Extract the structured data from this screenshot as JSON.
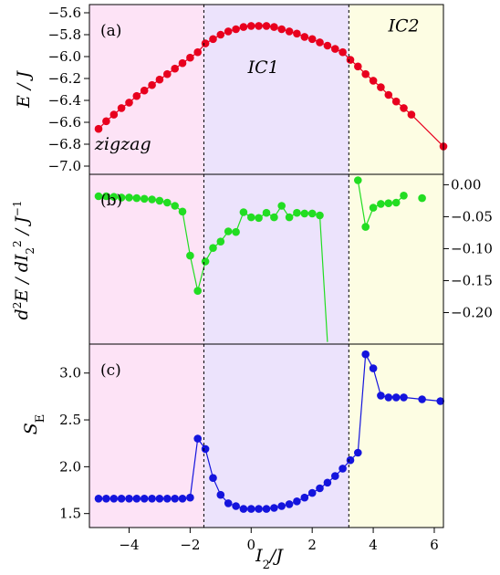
{
  "chart_data": [
    {
      "type": "line",
      "panel_label": "(a)",
      "ylabel": "E / J",
      "xlim": [
        -5.3,
        6.3
      ],
      "ylim": [
        -7.05,
        -5.55
      ],
      "yticks": [
        "−5.6",
        "−5.8",
        "−6.0",
        "−6.2",
        "−6.4",
        "−6.6",
        "−6.8",
        "−7.0"
      ],
      "ytick_values": [
        -5.6,
        -5.8,
        -6.0,
        -6.2,
        -6.4,
        -6.6,
        -6.8,
        -7.0
      ],
      "axis_side": "left",
      "marker_color": "#e8001e",
      "line_color": "#e8001e",
      "region_labels": [
        {
          "text": "zigzag",
          "x": -4.2,
          "y": -6.85
        },
        {
          "text": "IC1",
          "x": 0.4,
          "y": -6.15
        },
        {
          "text": "IC2",
          "x": 5.0,
          "y": -5.77
        }
      ],
      "x": [
        -5.0,
        -4.75,
        -4.5,
        -4.25,
        -4.0,
        -3.75,
        -3.5,
        -3.25,
        -3.0,
        -2.75,
        -2.5,
        -2.25,
        -2.0,
        -1.75,
        -1.5,
        -1.25,
        -1.0,
        -0.75,
        -0.5,
        -0.25,
        0.0,
        0.25,
        0.5,
        0.75,
        1.0,
        1.25,
        1.5,
        1.75,
        2.0,
        2.25,
        2.5,
        2.75,
        3.0,
        3.25,
        3.5,
        3.75,
        4.0,
        4.25,
        4.5,
        4.75,
        5.0,
        5.25,
        6.3
      ],
      "y": [
        -6.66,
        -6.59,
        -6.53,
        -6.47,
        -6.42,
        -6.36,
        -6.31,
        -6.26,
        -6.21,
        -6.16,
        -6.11,
        -6.06,
        -6.01,
        -5.96,
        -5.88,
        -5.84,
        -5.8,
        -5.77,
        -5.75,
        -5.73,
        -5.72,
        -5.72,
        -5.72,
        -5.73,
        -5.75,
        -5.77,
        -5.79,
        -5.82,
        -5.84,
        -5.87,
        -5.9,
        -5.93,
        -5.96,
        -6.03,
        -6.09,
        -6.16,
        -6.22,
        -6.28,
        -6.35,
        -6.41,
        -6.47,
        -6.53,
        -6.82
      ]
    },
    {
      "type": "line",
      "panel_label": "(b)",
      "ylabel": "d²E / dI₂² / J⁻¹",
      "xlim": [
        -5.3,
        6.3
      ],
      "ylim": [
        -0.245,
        0.012
      ],
      "yticks": [
        "0.00",
        "−0.05",
        "−0.10",
        "−0.15",
        "−0.20"
      ],
      "ytick_values": [
        0.0,
        -0.05,
        -0.1,
        -0.15,
        -0.2
      ],
      "axis_side": "right",
      "marker_color": "#22dd22",
      "line_color": "#22dd22",
      "x": [
        -5.0,
        -4.75,
        -4.5,
        -4.25,
        -4.0,
        -3.75,
        -3.5,
        -3.25,
        -3.0,
        -2.75,
        -2.5,
        -2.25,
        -2.0,
        -1.75,
        -1.5,
        -1.25,
        -1.0,
        -0.75,
        -0.5,
        -0.25,
        0.0,
        0.25,
        0.5,
        0.75,
        1.0,
        1.25,
        1.5,
        1.75,
        2.0,
        2.25,
        2.5,
        2.75,
        3.0,
        3.25,
        3.5,
        3.75,
        4.0,
        4.25,
        4.5,
        4.75,
        5.0,
        5.25,
        5.6
      ],
      "y": [
        -0.018,
        -0.018,
        -0.019,
        -0.02,
        -0.02,
        -0.021,
        -0.022,
        -0.023,
        -0.025,
        -0.028,
        -0.033,
        -0.042,
        -0.111,
        -0.166,
        -0.12,
        -0.099,
        -0.089,
        -0.073,
        -0.074,
        -0.043,
        -0.051,
        -0.052,
        -0.044,
        -0.051,
        -0.033,
        -0.051,
        -0.044,
        -0.045,
        -0.045,
        -0.048,
        -0.246,
        null,
        null,
        null,
        0.007,
        -0.066,
        -0.036,
        -0.03,
        -0.029,
        -0.028,
        -0.017,
        null,
        -0.021
      ]
    },
    {
      "type": "line",
      "panel_label": "(c)",
      "ylabel": "S_E",
      "xlabel": "I₂/J",
      "xlim": [
        -5.3,
        6.3
      ],
      "ylim": [
        1.38,
        3.28
      ],
      "yticks": [
        "3.0",
        "2.5",
        "2.0",
        "1.5"
      ],
      "ytick_values": [
        3.0,
        2.5,
        2.0,
        1.5
      ],
      "xticks": [
        "−4",
        "−2",
        "0",
        "2",
        "4",
        "6"
      ],
      "xtick_values": [
        -4,
        -2,
        0,
        2,
        4,
        6
      ],
      "axis_side": "left",
      "marker_color": "#1414dd",
      "line_color": "#1414dd",
      "x": [
        -5.0,
        -4.75,
        -4.5,
        -4.25,
        -4.0,
        -3.75,
        -3.5,
        -3.25,
        -3.0,
        -2.75,
        -2.5,
        -2.25,
        -2.0,
        -1.75,
        -1.5,
        -1.25,
        -1.0,
        -0.75,
        -0.5,
        -0.25,
        0.0,
        0.25,
        0.5,
        0.75,
        1.0,
        1.25,
        1.5,
        1.75,
        2.0,
        2.25,
        2.5,
        2.75,
        3.0,
        3.25,
        3.5,
        3.75,
        4.0,
        4.25,
        4.5,
        4.75,
        5.0,
        5.6,
        6.2
      ],
      "y": [
        1.66,
        1.66,
        1.66,
        1.66,
        1.66,
        1.66,
        1.66,
        1.66,
        1.66,
        1.66,
        1.66,
        1.66,
        1.67,
        2.3,
        2.19,
        1.88,
        1.7,
        1.61,
        1.58,
        1.55,
        1.55,
        1.55,
        1.55,
        1.56,
        1.58,
        1.6,
        1.63,
        1.67,
        1.72,
        1.77,
        1.83,
        1.9,
        1.98,
        2.07,
        2.15,
        3.2,
        3.05,
        2.76,
        2.74,
        2.74,
        2.74,
        2.72,
        2.7
      ]
    }
  ],
  "regions": {
    "boundaries": [
      -1.55,
      3.2
    ],
    "colors": [
      "#fde3f6",
      "#ece3fc",
      "#fdfde3"
    ]
  }
}
